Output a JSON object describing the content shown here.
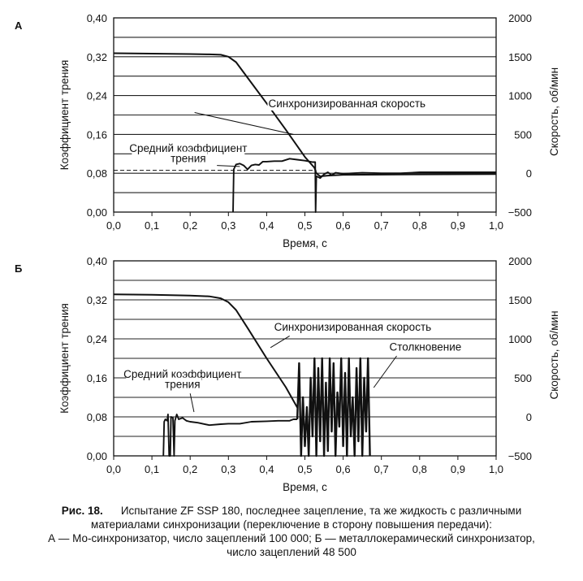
{
  "caption": {
    "figure_no": "Рис. 18.",
    "line1": "Испытание ZF SSP 180, последнее зацепление, та же жидкость с различными",
    "line2": "материалами синхронизации  (переключение в сторону повышения передачи):",
    "line3": "А — Мо-синхронизатор, число зацеплений 100 000; Б — металлокерамический синхронизатор,",
    "line4": "число зацеплений 48 500"
  },
  "chart_data": [
    {
      "type": "line",
      "panel_label": "А",
      "xlabel": "Время, с",
      "ylabel": "Коэффициент трения",
      "y2label": "Скорость, об/мин",
      "xlim": [
        0.0,
        1.0
      ],
      "ylim": [
        0.0,
        0.4
      ],
      "y2lim": [
        -500,
        2000
      ],
      "x_ticks": [
        "0,0",
        "0,1",
        "0,2",
        "0,3",
        "0,4",
        "0,5",
        "0,6",
        "0,7",
        "0,8",
        "0,9",
        "1,0"
      ],
      "y_ticks": [
        "0,00",
        "0,08",
        "0,16",
        "0,24",
        "0,32",
        "0,40"
      ],
      "y2_ticks": [
        "−500",
        "0",
        "500",
        "1000",
        "1500",
        "2000"
      ],
      "grid": true,
      "annotations": [
        {
          "text": "Синхронизированная скорость",
          "x": 0.61,
          "y": 0.216
        },
        {
          "text": "Средний коэффициент",
          "x": 0.195,
          "y": 0.124
        },
        {
          "text": "трения",
          "x": 0.195,
          "y": 0.103
        }
      ],
      "mean_friction": 0.086,
      "series": [
        {
          "kind": "speed",
          "axis": "right",
          "x": [
            0.0,
            0.1,
            0.2,
            0.25,
            0.28,
            0.3,
            0.32,
            0.35,
            0.4,
            0.45,
            0.5,
            0.525,
            0.53,
            0.54,
            0.56,
            0.6,
            0.7,
            0.8,
            1.0
          ],
          "values": [
            1545,
            1540,
            1535,
            1530,
            1525,
            1500,
            1430,
            1230,
            900,
            560,
            210,
            70,
            0,
            -40,
            -30,
            -20,
            -18,
            -15,
            -10
          ]
        },
        {
          "kind": "friction",
          "axis": "left",
          "x": [
            0.312,
            0.314,
            0.32,
            0.33,
            0.34,
            0.35,
            0.36,
            0.37,
            0.38,
            0.39,
            0.4,
            0.42,
            0.44,
            0.46,
            0.48,
            0.5,
            0.52,
            0.527,
            0.528,
            0.53,
            0.54,
            0.55,
            0.56,
            0.57,
            0.58,
            0.6,
            0.65,
            0.7,
            0.75,
            0.8,
            1.0
          ],
          "values": [
            0.0,
            0.088,
            0.098,
            0.1,
            0.096,
            0.088,
            0.096,
            0.098,
            0.097,
            0.104,
            0.104,
            0.105,
            0.105,
            0.11,
            0.108,
            0.106,
            0.103,
            0.103,
            0.0,
            0.074,
            0.07,
            0.078,
            0.082,
            0.076,
            0.081,
            0.079,
            0.081,
            0.08,
            0.08,
            0.082,
            0.082
          ]
        }
      ]
    },
    {
      "type": "line",
      "panel_label": "Б",
      "xlabel": "Время, с",
      "ylabel": "Коэффициент трения",
      "y2label": "Скорость, об/мин",
      "xlim": [
        0.0,
        1.0
      ],
      "ylim": [
        0.0,
        0.4
      ],
      "y2lim": [
        -500,
        2000
      ],
      "x_ticks": [
        "0,0",
        "0,1",
        "0,2",
        "0,3",
        "0,4",
        "0,5",
        "0,6",
        "0,7",
        "0,8",
        "0,9",
        "1,0"
      ],
      "y_ticks": [
        "0,00",
        "0,08",
        "0,16",
        "0,24",
        "0,32",
        "0,40"
      ],
      "y2_ticks": [
        "−500",
        "0",
        "500",
        "1000",
        "1500",
        "2000"
      ],
      "grid": true,
      "annotations": [
        {
          "text": "Синхронизированная скорость",
          "x": 0.625,
          "y": 0.257
        },
        {
          "text": "Столкновение",
          "x": 0.815,
          "y": 0.216
        },
        {
          "text": "Средний коэффициент",
          "x": 0.18,
          "y": 0.16
        },
        {
          "text": "трения",
          "x": 0.18,
          "y": 0.139
        }
      ],
      "series": [
        {
          "kind": "speed",
          "axis": "right",
          "x": [
            0.0,
            0.1,
            0.2,
            0.25,
            0.28,
            0.3,
            0.32,
            0.35,
            0.4,
            0.45,
            0.48
          ],
          "values": [
            1570,
            1565,
            1555,
            1545,
            1520,
            1470,
            1370,
            1140,
            750,
            380,
            120
          ]
        },
        {
          "kind": "friction",
          "axis": "left",
          "x": [
            0.13,
            0.132,
            0.135,
            0.14,
            0.142,
            0.145,
            0.148,
            0.15,
            0.155,
            0.158,
            0.16,
            0.165,
            0.17,
            0.18,
            0.19,
            0.2,
            0.22,
            0.25,
            0.28,
            0.3,
            0.33,
            0.36,
            0.4,
            0.43,
            0.46,
            0.47,
            0.48
          ],
          "values": [
            0.0,
            0.07,
            0.075,
            0.072,
            0.085,
            0.0,
            0.0,
            0.08,
            0.078,
            0.0,
            0.072,
            0.085,
            0.075,
            0.078,
            0.072,
            0.07,
            0.068,
            0.063,
            0.065,
            0.066,
            0.066,
            0.07,
            0.071,
            0.072,
            0.072,
            0.075,
            0.075
          ]
        },
        {
          "kind": "collision",
          "axis": "left",
          "x": [
            0.48,
            0.485,
            0.49,
            0.495,
            0.5,
            0.505,
            0.51,
            0.515,
            0.52,
            0.525,
            0.53,
            0.535,
            0.54,
            0.545,
            0.55,
            0.555,
            0.56,
            0.565,
            0.57,
            0.575,
            0.58,
            0.585,
            0.59,
            0.595,
            0.6,
            0.605,
            0.61,
            0.615,
            0.62,
            0.625,
            0.63,
            0.635,
            0.64,
            0.645,
            0.65,
            0.655,
            0.66,
            0.665,
            0.67
          ],
          "values": [
            0.075,
            0.19,
            0.0,
            0.12,
            0.02,
            0.1,
            0.0,
            0.16,
            0.04,
            0.2,
            0.0,
            0.18,
            0.03,
            0.2,
            0.0,
            0.15,
            0.01,
            0.2,
            0.05,
            0.19,
            0.0,
            0.13,
            0.06,
            0.2,
            0.02,
            0.17,
            0.0,
            0.2,
            0.04,
            0.12,
            0.0,
            0.18,
            0.03,
            0.2,
            0.0,
            0.16,
            0.05,
            0.2,
            0.0
          ]
        }
      ]
    }
  ]
}
